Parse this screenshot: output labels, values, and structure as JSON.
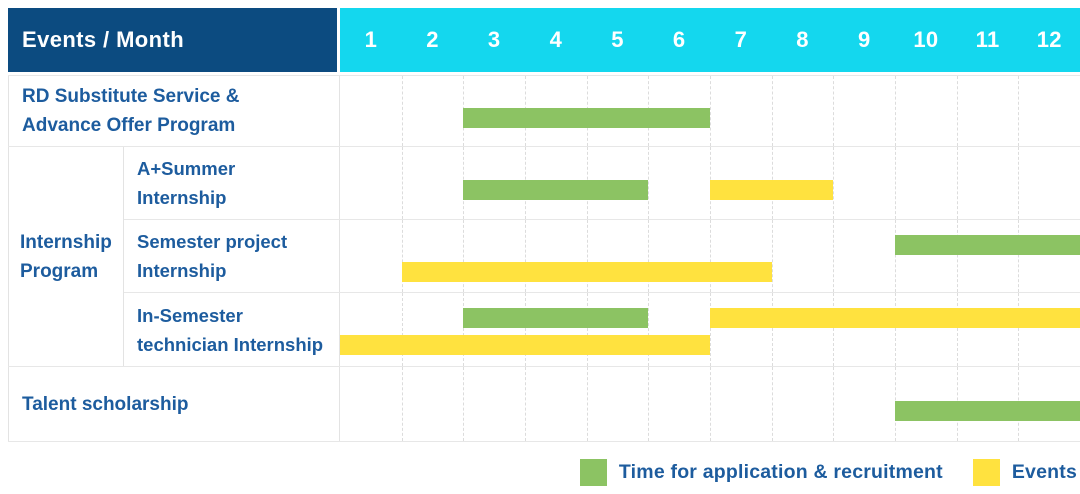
{
  "colors": {
    "header_bg": "#0C4B80",
    "months_bg": "#14D7EE",
    "label_text": "#1D5C9E",
    "recruitment": "#8CC363",
    "event": "#FFE23F",
    "grid_line": "#DCDCDC",
    "row_border": "#E7E7E7",
    "cell_border": "#E3E3E3"
  },
  "header": {
    "title": "Events / Month",
    "months": [
      "1",
      "2",
      "3",
      "4",
      "5",
      "6",
      "7",
      "8",
      "9",
      "10",
      "11",
      "12"
    ]
  },
  "group_cell": {
    "lines": [
      "Internship",
      "Program"
    ]
  },
  "labels": {
    "rd": [
      "RD Substitute Service &",
      "Advance Offer Program"
    ],
    "a_summer": [
      "A+Summer",
      "Internship"
    ],
    "semester_project": [
      "Semester project",
      "Internship"
    ],
    "in_semester": [
      "In-Semester",
      "technician Internship"
    ],
    "talent": [
      "Talent scholarship"
    ]
  },
  "legend": {
    "recruitment_label": "Time for application & recruitment",
    "events_label": "Events"
  },
  "chart_data": {
    "type": "gantt",
    "title": "Events / Month",
    "x_axis": {
      "unit": "month",
      "ticks": [
        1,
        2,
        3,
        4,
        5,
        6,
        7,
        8,
        9,
        10,
        11,
        12
      ],
      "range": [
        1,
        12
      ]
    },
    "series": [
      {
        "key": "recruitment",
        "name": "Time for application & recruitment",
        "color": "#8CC363"
      },
      {
        "key": "event",
        "name": "Events",
        "color": "#FFE23F"
      }
    ],
    "tasks": [
      {
        "name": "RD Substitute Service & Advance Offer Program",
        "group": null,
        "spans": [
          {
            "key": "recruitment",
            "series": "Time for application & recruitment",
            "start_month": 3,
            "end_month": 6,
            "lane": "center"
          }
        ]
      },
      {
        "name": "A+Summer Internship",
        "group": "Internship Program",
        "spans": [
          {
            "key": "recruitment",
            "series": "Time for application & recruitment",
            "start_month": 3,
            "end_month": 5,
            "lane": "center"
          },
          {
            "key": "event",
            "series": "Events",
            "start_month": 7,
            "end_month": 8,
            "lane": "center"
          }
        ]
      },
      {
        "name": "Semester project Internship",
        "group": "Internship Program",
        "spans": [
          {
            "key": "recruitment",
            "series": "Time for application & recruitment",
            "start_month": 10,
            "end_month": 12,
            "lane": "top"
          },
          {
            "key": "event",
            "series": "Events",
            "start_month": 2,
            "end_month": 7,
            "lane": "bottom"
          }
        ]
      },
      {
        "name": "In-Semester technician Internship",
        "group": "Internship Program",
        "spans": [
          {
            "key": "recruitment",
            "series": "Time for application & recruitment",
            "start_month": 3,
            "end_month": 5,
            "lane": "top"
          },
          {
            "key": "event",
            "series": "Events",
            "start_month": 7,
            "end_month": 12,
            "lane": "top"
          },
          {
            "key": "event",
            "series": "Events",
            "start_month": 1,
            "end_month": 6,
            "lane": "bottom"
          }
        ]
      },
      {
        "name": "Talent scholarship",
        "group": null,
        "spans": [
          {
            "key": "recruitment",
            "series": "Time for application & recruitment",
            "start_month": 10,
            "end_month": 12,
            "lane": "center"
          }
        ]
      }
    ],
    "legend_position": "bottom-right",
    "grid": "dashed-vertical-month-lines"
  }
}
